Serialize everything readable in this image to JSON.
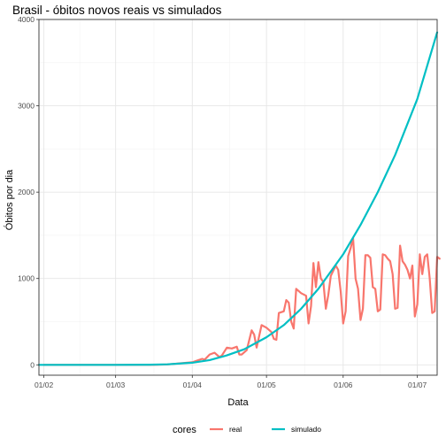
{
  "chart_data": {
    "type": "line",
    "title": "Brasil - óbitos novos reais vs simulados",
    "xlabel": "Data",
    "ylabel": "Óbitos por dia",
    "x_range": [
      "2020-01-30",
      "2020-07-09"
    ],
    "ylim": [
      -120,
      4000
    ],
    "y_ticks": [
      0,
      1000,
      2000,
      3000,
      4000
    ],
    "x_ticks": [
      {
        "date": "2020-02-01",
        "label": "01/02"
      },
      {
        "date": "2020-03-01",
        "label": "01/03"
      },
      {
        "date": "2020-04-01",
        "label": "01/04"
      },
      {
        "date": "2020-05-01",
        "label": "01/05"
      },
      {
        "date": "2020-06-01",
        "label": "01/06"
      },
      {
        "date": "2020-07-01",
        "label": "01/07"
      }
    ],
    "grid": true,
    "legend": {
      "title": "cores",
      "position": "bottom"
    },
    "series": [
      {
        "name": "real",
        "color": "#F8766D",
        "points": [
          [
            "2020-02-01",
            0
          ],
          [
            "2020-02-15",
            0
          ],
          [
            "2020-03-01",
            0
          ],
          [
            "2020-03-15",
            0
          ],
          [
            "2020-03-18",
            1
          ],
          [
            "2020-03-22",
            5
          ],
          [
            "2020-03-26",
            15
          ],
          [
            "2020-03-29",
            22
          ],
          [
            "2020-04-01",
            30
          ],
          [
            "2020-04-03",
            50
          ],
          [
            "2020-04-05",
            70
          ],
          [
            "2020-04-06",
            60
          ],
          [
            "2020-04-08",
            120
          ],
          [
            "2020-04-10",
            140
          ],
          [
            "2020-04-12",
            90
          ],
          [
            "2020-04-13",
            110
          ],
          [
            "2020-04-15",
            200
          ],
          [
            "2020-04-17",
            190
          ],
          [
            "2020-04-19",
            210
          ],
          [
            "2020-04-20",
            120
          ],
          [
            "2020-04-21",
            120
          ],
          [
            "2020-04-23",
            170
          ],
          [
            "2020-04-25",
            400
          ],
          [
            "2020-04-26",
            350
          ],
          [
            "2020-04-27",
            200
          ],
          [
            "2020-04-29",
            460
          ],
          [
            "2020-05-01",
            430
          ],
          [
            "2020-05-03",
            380
          ],
          [
            "2020-05-04",
            300
          ],
          [
            "2020-05-05",
            290
          ],
          [
            "2020-05-06",
            600
          ],
          [
            "2020-05-08",
            620
          ],
          [
            "2020-05-09",
            750
          ],
          [
            "2020-05-10",
            720
          ],
          [
            "2020-05-11",
            500
          ],
          [
            "2020-05-12",
            420
          ],
          [
            "2020-05-13",
            880
          ],
          [
            "2020-05-15",
            830
          ],
          [
            "2020-05-17",
            800
          ],
          [
            "2020-05-18",
            480
          ],
          [
            "2020-05-19",
            680
          ],
          [
            "2020-05-20",
            1180
          ],
          [
            "2020-05-21",
            900
          ],
          [
            "2020-05-22",
            1190
          ],
          [
            "2020-05-23",
            1000
          ],
          [
            "2020-05-24",
            960
          ],
          [
            "2020-05-25",
            650
          ],
          [
            "2020-05-26",
            810
          ],
          [
            "2020-05-27",
            1030
          ],
          [
            "2020-05-29",
            1150
          ],
          [
            "2020-05-30",
            1100
          ],
          [
            "2020-05-31",
            850
          ],
          [
            "2020-06-01",
            480
          ],
          [
            "2020-06-02",
            620
          ],
          [
            "2020-06-03",
            1260
          ],
          [
            "2020-06-04",
            1350
          ],
          [
            "2020-06-05",
            1470
          ],
          [
            "2020-06-06",
            1000
          ],
          [
            "2020-06-07",
            880
          ],
          [
            "2020-06-08",
            520
          ],
          [
            "2020-06-09",
            650
          ],
          [
            "2020-06-10",
            1270
          ],
          [
            "2020-06-11",
            1270
          ],
          [
            "2020-06-12",
            1240
          ],
          [
            "2020-06-13",
            900
          ],
          [
            "2020-06-14",
            880
          ],
          [
            "2020-06-15",
            620
          ],
          [
            "2020-06-16",
            640
          ],
          [
            "2020-06-17",
            1280
          ],
          [
            "2020-06-18",
            1270
          ],
          [
            "2020-06-19",
            1230
          ],
          [
            "2020-06-20",
            1200
          ],
          [
            "2020-06-21",
            1050
          ],
          [
            "2020-06-22",
            650
          ],
          [
            "2020-06-23",
            660
          ],
          [
            "2020-06-24",
            1380
          ],
          [
            "2020-06-25",
            1200
          ],
          [
            "2020-06-26",
            1160
          ],
          [
            "2020-06-27",
            1100
          ],
          [
            "2020-06-28",
            1000
          ],
          [
            "2020-06-29",
            1150
          ],
          [
            "2020-06-30",
            560
          ],
          [
            "2020-07-01",
            700
          ],
          [
            "2020-07-02",
            1280
          ],
          [
            "2020-07-03",
            1050
          ],
          [
            "2020-07-04",
            1250
          ],
          [
            "2020-07-05",
            1280
          ],
          [
            "2020-07-06",
            1000
          ],
          [
            "2020-07-07",
            600
          ],
          [
            "2020-07-08",
            620
          ],
          [
            "2020-07-09",
            1250
          ],
          [
            "2020-07-10",
            1230
          ]
        ]
      },
      {
        "name": "simulado",
        "color": "#00BFC4",
        "points": [
          [
            "2020-01-30",
            0
          ],
          [
            "2020-02-15",
            0
          ],
          [
            "2020-03-01",
            0
          ],
          [
            "2020-03-15",
            2
          ],
          [
            "2020-03-22",
            6
          ],
          [
            "2020-04-01",
            25
          ],
          [
            "2020-04-08",
            55
          ],
          [
            "2020-04-15",
            110
          ],
          [
            "2020-04-22",
            180
          ],
          [
            "2020-05-01",
            320
          ],
          [
            "2020-05-08",
            460
          ],
          [
            "2020-05-15",
            650
          ],
          [
            "2020-05-22",
            880
          ],
          [
            "2020-06-01",
            1280
          ],
          [
            "2020-06-08",
            1620
          ],
          [
            "2020-06-15",
            2000
          ],
          [
            "2020-06-22",
            2430
          ],
          [
            "2020-07-01",
            3080
          ],
          [
            "2020-07-09",
            3850
          ]
        ]
      }
    ]
  }
}
